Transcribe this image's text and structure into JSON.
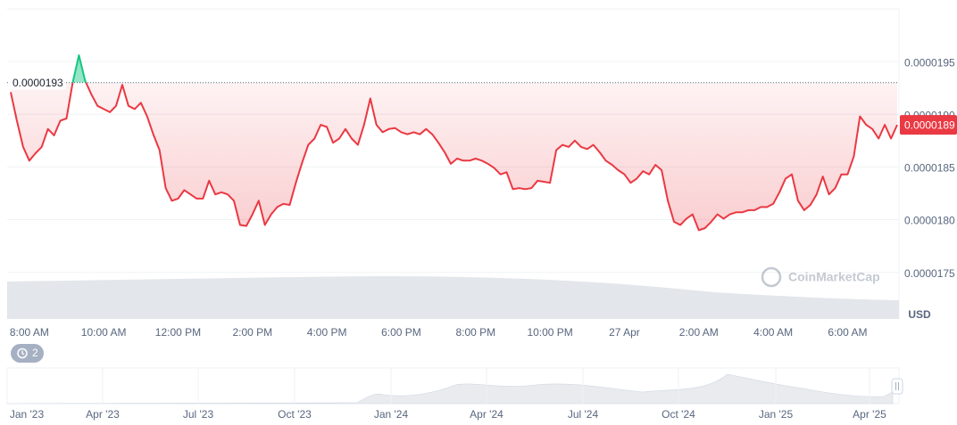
{
  "chart_data": {
    "type": "line",
    "categories": [
      null,
      null,
      null,
      "8:00 AM",
      null,
      null,
      null,
      null,
      null,
      null,
      null,
      null,
      null,
      null,
      null,
      "10:00 AM",
      null,
      null,
      null,
      null,
      null,
      null,
      null,
      null,
      null,
      null,
      null,
      "12:00 PM",
      null,
      null,
      null,
      null,
      null,
      null,
      null,
      null,
      null,
      null,
      null,
      "2:00 PM",
      null,
      null,
      null,
      null,
      null,
      null,
      null,
      null,
      null,
      null,
      null,
      "4:00 PM",
      null,
      null,
      null,
      null,
      null,
      null,
      null,
      null,
      null,
      null,
      null,
      "6:00 PM",
      null,
      null,
      null,
      null,
      null,
      null,
      null,
      null,
      null,
      null,
      null,
      "8:00 PM",
      null,
      null,
      null,
      null,
      null,
      null,
      null,
      null,
      null,
      null,
      null,
      "10:00 PM",
      null,
      null,
      null,
      null,
      null,
      null,
      null,
      null,
      null,
      null,
      null,
      "27 Apr",
      null,
      null,
      null,
      null,
      null,
      null,
      null,
      null,
      null,
      null,
      null,
      "2:00 AM",
      null,
      null,
      null,
      null,
      null,
      null,
      null,
      null,
      null,
      null,
      null,
      "4:00 AM",
      null,
      null,
      null,
      null,
      null,
      null,
      null,
      null,
      null,
      null,
      null,
      "6:00 AM",
      null,
      null,
      null,
      null,
      null,
      null,
      null,
      null
    ],
    "values": [
      1.921e-05,
      1.894e-05,
      1.869e-05,
      1.856e-05,
      1.863e-05,
      1.869e-05,
      1.886e-05,
      1.88e-05,
      1.894e-05,
      1.896e-05,
      1.93e-05,
      1.956e-05,
      1.932e-05,
      1.919e-05,
      1.908e-05,
      1.905e-05,
      1.902e-05,
      1.908e-05,
      1.928e-05,
      1.908e-05,
      1.905e-05,
      1.911e-05,
      1.898e-05,
      1.881e-05,
      1.866e-05,
      1.83e-05,
      1.818e-05,
      1.82e-05,
      1.828e-05,
      1.824e-05,
      1.82e-05,
      1.82e-05,
      1.837e-05,
      1.824e-05,
      1.826e-05,
      1.824e-05,
      1.818e-05,
      1.795e-05,
      1.794e-05,
      1.805e-05,
      1.818e-05,
      1.795e-05,
      1.805e-05,
      1.812e-05,
      1.815e-05,
      1.814e-05,
      1.835e-05,
      1.854e-05,
      1.871e-05,
      1.877e-05,
      1.89e-05,
      1.888e-05,
      1.873e-05,
      1.877e-05,
      1.886e-05,
      1.877e-05,
      1.871e-05,
      1.89e-05,
      1.915e-05,
      1.89e-05,
      1.883e-05,
      1.886e-05,
      1.887e-05,
      1.883e-05,
      1.881e-05,
      1.883e-05,
      1.881e-05,
      1.886e-05,
      1.881e-05,
      1.873e-05,
      1.864e-05,
      1.853e-05,
      1.858e-05,
      1.856e-05,
      1.856e-05,
      1.858e-05,
      1.856e-05,
      1.853e-05,
      1.849e-05,
      1.843e-05,
      1.845e-05,
      1.829e-05,
      1.83e-05,
      1.829e-05,
      1.83e-05,
      1.837e-05,
      1.836e-05,
      1.835e-05,
      1.866e-05,
      1.871e-05,
      1.869e-05,
      1.875e-05,
      1.869e-05,
      1.867e-05,
      1.871e-05,
      1.864e-05,
      1.856e-05,
      1.852e-05,
      1.847e-05,
      1.843e-05,
      1.835e-05,
      1.839e-05,
      1.846e-05,
      1.843e-05,
      1.852e-05,
      1.847e-05,
      1.818e-05,
      1.798e-05,
      1.795e-05,
      1.801e-05,
      1.805e-05,
      1.79e-05,
      1.792e-05,
      1.798e-05,
      1.805e-05,
      1.801e-05,
      1.805e-05,
      1.807e-05,
      1.807e-05,
      1.809e-05,
      1.809e-05,
      1.812e-05,
      1.812e-05,
      1.815e-05,
      1.826e-05,
      1.839e-05,
      1.843e-05,
      1.818e-05,
      1.809e-05,
      1.814e-05,
      1.824e-05,
      1.841e-05,
      1.824e-05,
      1.83e-05,
      1.843e-05,
      1.843e-05,
      1.86e-05,
      1.898e-05,
      1.89e-05,
      1.886e-05,
      1.877e-05,
      1.89e-05,
      1.877e-05,
      1.89e-05
    ],
    "ylim": [
      1.71e-05,
      2e-05
    ],
    "yticks": [
      1.75e-05,
      {
        "value": 1.8e-05,
        "label": "0.0000180"
      },
      1.85e-05,
      {
        "value": 1.9e-05,
        "label": "0.0000190"
      },
      1.95e-05
    ],
    "grid": true,
    "open_price": 1.93e-05,
    "last_price": 1.89e-05,
    "up_color": "#16c784",
    "down_color": "#ea3943",
    "y_axis_label": "USD"
  },
  "navigator": {
    "labels": [
      "Jan '23",
      "Apr '23",
      "Jul '23",
      "Oct '23",
      "Jan '24",
      "Apr '24",
      "Jul '24",
      "Oct '24",
      "Jan '25",
      "Apr '25"
    ]
  },
  "watermark": "CoinMarketCap",
  "badge": 2
}
